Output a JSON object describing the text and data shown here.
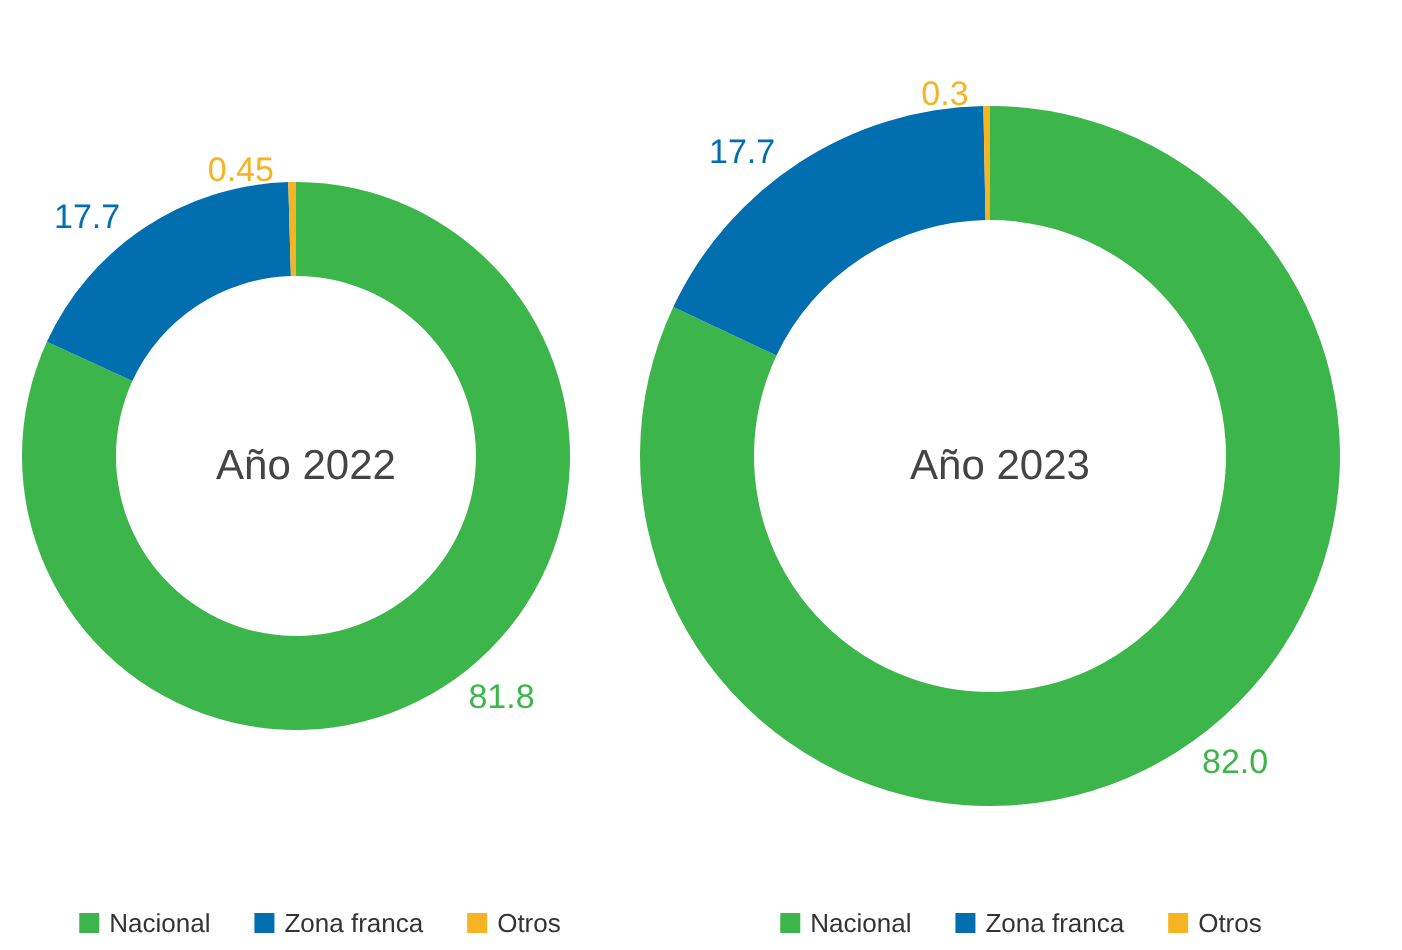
{
  "chart_data": [
    {
      "type": "donut",
      "title": "Año 2022",
      "categories": [
        "Nacional",
        "Zona franca",
        "Otros"
      ],
      "values": [
        81.8,
        17.7,
        0.45
      ],
      "colors": [
        "#3cb54a",
        "#006eaf",
        "#f6b322"
      ],
      "data_labels": true,
      "legend": "bottom"
    },
    {
      "type": "donut",
      "title": "Año 2023",
      "categories": [
        "Nacional",
        "Zona franca",
        "Otros"
      ],
      "values": [
        82.0,
        17.7,
        0.3
      ],
      "colors": [
        "#3cb54a",
        "#006eaf",
        "#f6b322"
      ],
      "value_labels": [
        "82.0",
        "17.7",
        "0.3"
      ],
      "legend": "bottom"
    }
  ]
}
